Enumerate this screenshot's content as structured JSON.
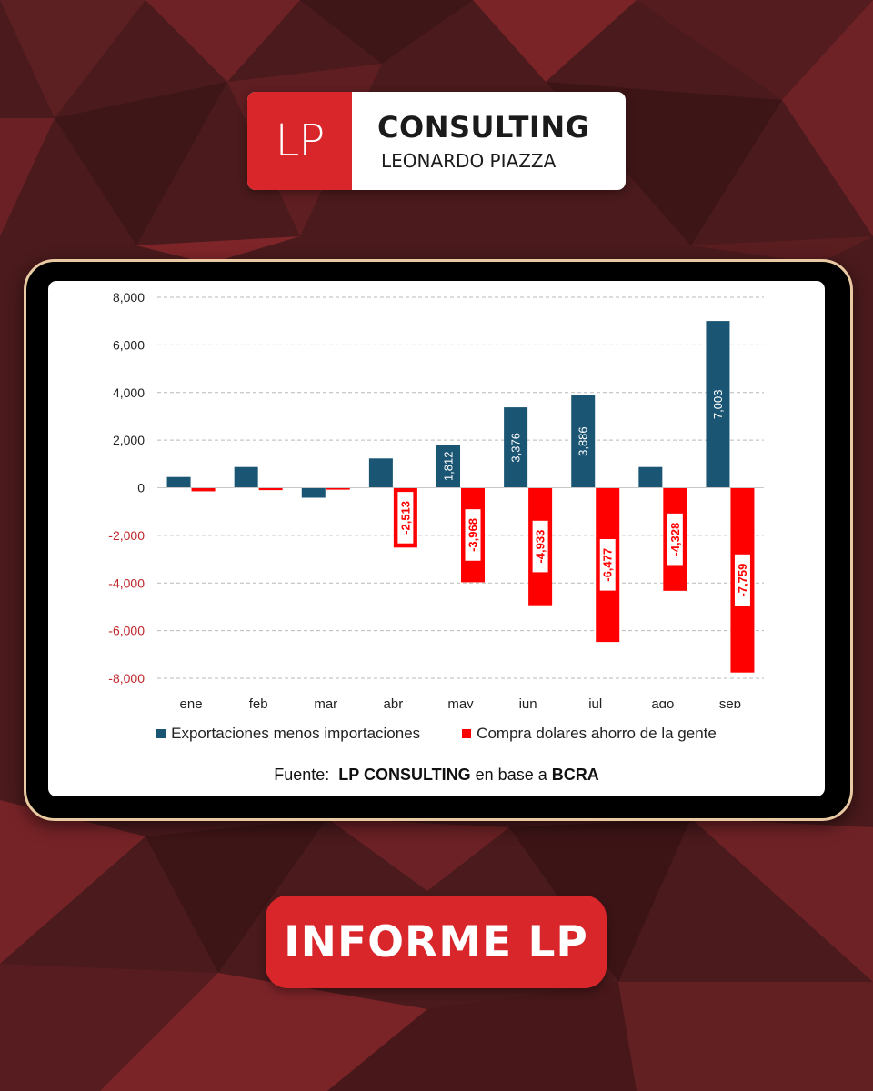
{
  "logo": {
    "mark": "LP",
    "title": "CONSULTING",
    "subtitle": "LEONARDO PIAZZA"
  },
  "chart_data": {
    "type": "bar",
    "categories": [
      "ene",
      "feb",
      "mar",
      "abr",
      "may",
      "jun",
      "jul",
      "ago",
      "sep"
    ],
    "series": [
      {
        "name": "Exportaciones menos importaciones",
        "color": "#1a5574",
        "values": [
          450,
          870,
          -420,
          1230,
          1812,
          3376,
          3886,
          870,
          7003
        ],
        "labels": [
          "",
          "",
          "",
          "",
          "1,812",
          "3,376",
          "3,886",
          "",
          "7,003"
        ]
      },
      {
        "name": "Compra dolares ahorro de la gente",
        "color": "#ff0000",
        "values": [
          -150,
          -100,
          -80,
          -2513,
          -3968,
          -4933,
          -6477,
          -4328,
          -7759
        ],
        "labels": [
          "",
          "",
          "",
          "-2,513",
          "-3,968",
          "-4,933",
          "-6,477",
          "-4,328",
          "-7,759"
        ]
      }
    ],
    "ylim": [
      -8000,
      8000
    ],
    "yticks": [
      8000,
      6000,
      4000,
      2000,
      0,
      -2000,
      -4000,
      -6000,
      -8000
    ],
    "ytick_labels": [
      "8,000",
      "6,000",
      "4,000",
      "2,000",
      "0",
      "-2,000",
      "-4,000",
      "-6,000",
      "-8,000"
    ],
    "negative_tick_color": "#c0262a",
    "grid": "dashed horizontal",
    "legend_position": "bottom"
  },
  "source": {
    "prefix": "Fuente:",
    "org": "LP CONSULTING",
    "middle": "en base a",
    "data_source": "BCRA"
  },
  "button": {
    "label": "INFORME LP"
  },
  "colors": {
    "brand_red": "#d8262a",
    "background": "#4a1a1c",
    "tablet_border": "#e9c9a2"
  }
}
